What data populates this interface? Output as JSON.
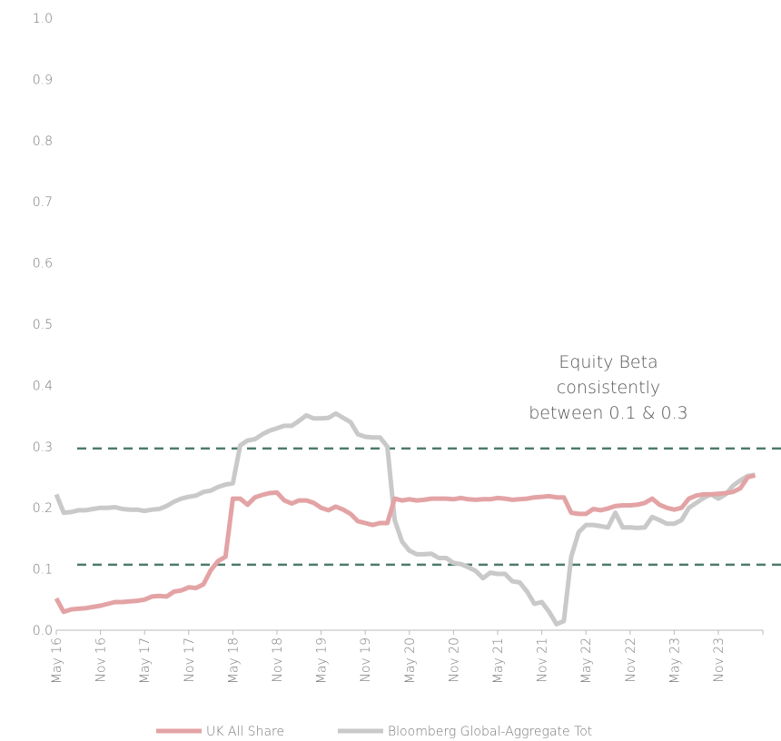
{
  "chart_data": {
    "type": "line",
    "categories": [
      "May 16",
      null,
      null,
      null,
      null,
      null,
      "Nov 16",
      null,
      null,
      null,
      null,
      null,
      "May 17",
      null,
      null,
      null,
      null,
      null,
      "Nov 17",
      null,
      null,
      null,
      null,
      null,
      "May 18",
      null,
      null,
      null,
      null,
      null,
      "Nov 18",
      null,
      null,
      null,
      null,
      null,
      "May 19",
      null,
      null,
      null,
      null,
      null,
      "Nov 19",
      null,
      null,
      null,
      null,
      null,
      "May 20",
      null,
      null,
      null,
      null,
      null,
      "Nov 20",
      null,
      null,
      null,
      null,
      null,
      "May 21",
      null,
      null,
      null,
      null,
      null,
      "Nov 21",
      null,
      null,
      null,
      null,
      null,
      "May 22",
      null,
      null,
      null,
      null,
      null,
      "Nov 22",
      null,
      null,
      null,
      null,
      null,
      "May 23",
      null,
      null,
      null,
      null,
      null,
      "Nov 23",
      null,
      null,
      null,
      null,
      null
    ],
    "series": [
      {
        "name": "UK All Share",
        "color": "#e3a3a5",
        "values": [
          0.052,
          0.03,
          0.034,
          0.035,
          0.036,
          0.038,
          0.04,
          0.043,
          0.046,
          0.046,
          0.047,
          0.048,
          0.05,
          0.055,
          0.056,
          0.055,
          0.063,
          0.065,
          0.07,
          0.069,
          0.075,
          0.098,
          0.113,
          0.12,
          0.215,
          0.215,
          0.205,
          0.217,
          0.221,
          0.224,
          0.225,
          0.212,
          0.207,
          0.212,
          0.212,
          0.208,
          0.2,
          0.196,
          0.202,
          0.197,
          0.19,
          0.178,
          0.175,
          0.172,
          0.175,
          0.175,
          0.215,
          0.212,
          0.214,
          0.212,
          0.213,
          0.215,
          0.215,
          0.215,
          0.214,
          0.216,
          0.214,
          0.213,
          0.214,
          0.214,
          0.216,
          0.215,
          0.213,
          0.214,
          0.215,
          0.217,
          0.218,
          0.219,
          0.217,
          0.217,
          0.192,
          0.19,
          0.19,
          0.198,
          0.196,
          0.199,
          0.203,
          0.204,
          0.204,
          0.205,
          0.208,
          0.215,
          0.205,
          0.2,
          0.197,
          0.2,
          0.215,
          0.22,
          0.222,
          0.222,
          0.223,
          0.224,
          0.226,
          0.232,
          0.25,
          0.253
        ]
      },
      {
        "name": "Bloomberg Global-Aggregate Tot",
        "color": "#c9c9c9",
        "values": [
          0.222,
          0.192,
          0.193,
          0.196,
          0.196,
          0.198,
          0.2,
          0.2,
          0.201,
          0.198,
          0.197,
          0.197,
          0.195,
          0.197,
          0.198,
          0.203,
          0.21,
          0.215,
          0.218,
          0.22,
          0.226,
          0.228,
          0.234,
          0.238,
          0.24,
          0.302,
          0.31,
          0.312,
          0.32,
          0.326,
          0.33,
          0.334,
          0.334,
          0.342,
          0.351,
          0.346,
          0.346,
          0.347,
          0.354,
          0.347,
          0.34,
          0.32,
          0.316,
          0.315,
          0.315,
          0.3,
          0.18,
          0.145,
          0.13,
          0.124,
          0.124,
          0.125,
          0.118,
          0.118,
          0.11,
          0.108,
          0.103,
          0.097,
          0.085,
          0.094,
          0.092,
          0.092,
          0.08,
          0.078,
          0.063,
          0.043,
          0.046,
          0.03,
          0.01,
          0.015,
          0.12,
          0.16,
          0.172,
          0.172,
          0.17,
          0.168,
          0.192,
          0.168,
          0.168,
          0.167,
          0.168,
          0.185,
          0.18,
          0.174,
          0.174,
          0.18,
          0.2,
          0.208,
          0.216,
          0.222,
          0.215,
          0.222,
          0.236,
          0.245,
          0.252,
          0.254
        ]
      }
    ],
    "ylim": [
      0,
      1
    ],
    "yticks": [
      {
        "value": 0,
        "label": "0.0"
      },
      0.1,
      0.2,
      0.3,
      0.4,
      0.5,
      0.6,
      0.7,
      0.8,
      0.9,
      {
        "value": 1,
        "label": "1.0"
      }
    ],
    "reference_lines": [
      0.297,
      0.107
    ],
    "reference_color": "#4e7a6c",
    "annotation": [
      "Equity Beta",
      "consistently",
      "between 0.1 & 0.3"
    ],
    "legend": "bottom"
  }
}
